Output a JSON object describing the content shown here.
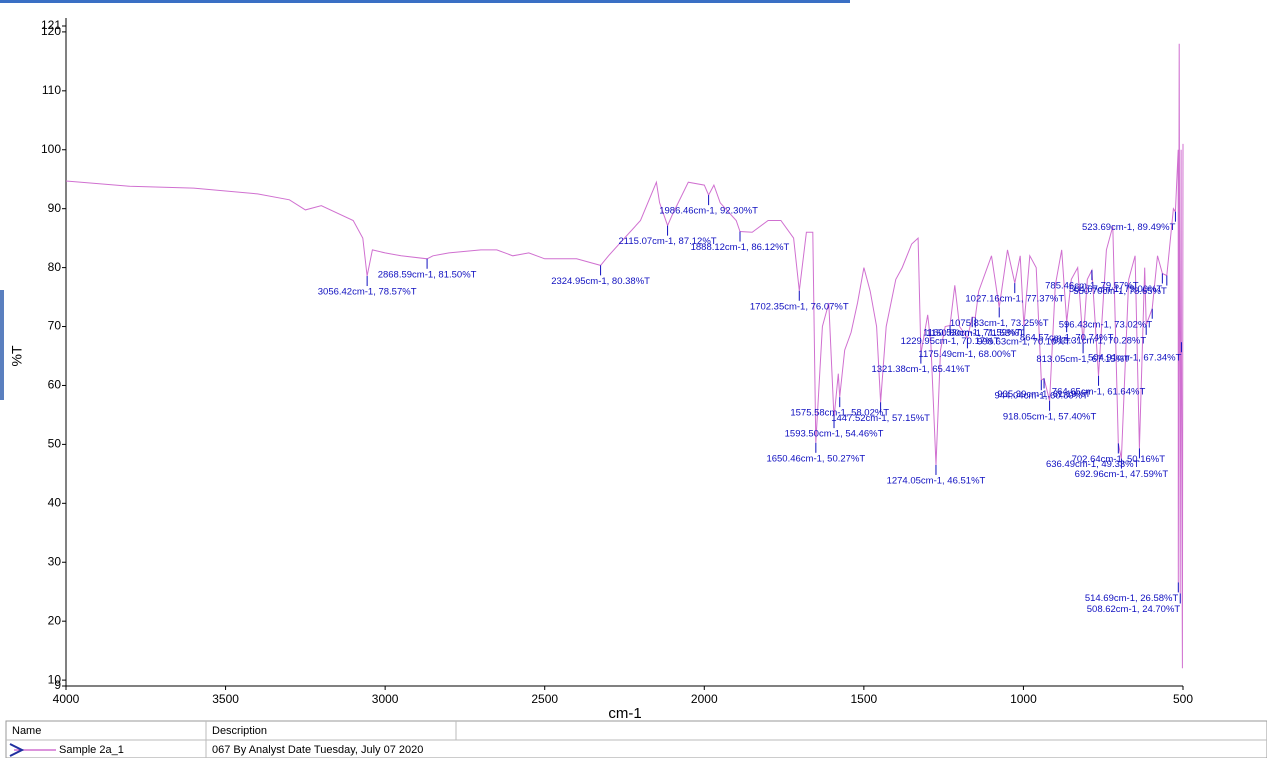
{
  "chart_data": {
    "type": "line",
    "xlabel": "cm-1",
    "ylabel": "%T",
    "xlim": [
      4000,
      500
    ],
    "ylim": [
      9,
      121
    ],
    "xticks": [
      4000,
      3500,
      3000,
      2500,
      2000,
      1500,
      1000,
      500
    ],
    "yticks": [
      9,
      10,
      20,
      30,
      40,
      50,
      60,
      70,
      80,
      90,
      100,
      110,
      120,
      121
    ],
    "x": [
      4000,
      3800,
      3600,
      3400,
      3300,
      3250,
      3200,
      3100,
      3070,
      3056.42,
      3040,
      3000,
      2950,
      2868.59,
      2850,
      2800,
      2700,
      2650,
      2600,
      2550,
      2500,
      2400,
      2324.95,
      2300,
      2250,
      2200,
      2150,
      2140,
      2115.07,
      2100,
      2050,
      2000,
      1986.46,
      1970,
      1950,
      1900,
      1888.12,
      1850,
      1800,
      1760,
      1720,
      1702.35,
      1680,
      1660,
      1650.46,
      1630,
      1610,
      1593.5,
      1580,
      1575.58,
      1560,
      1540,
      1520,
      1500,
      1480,
      1460,
      1447.52,
      1430,
      1400,
      1380,
      1350,
      1330,
      1321.38,
      1300,
      1290,
      1274.05,
      1260,
      1245,
      1229.95,
      1215,
      1200,
      1175.49,
      1160.53,
      1150.8,
      1140,
      1100,
      1075.83,
      1050,
      1027.16,
      1010,
      998.63,
      980,
      960,
      944.04,
      935.39,
      918.05,
      900,
      880,
      864.57,
      850,
      830,
      813.05,
      800,
      785.46,
      764.65,
      740,
      720,
      702.64,
      692.96,
      670,
      650,
      636.49,
      620,
      615.31,
      596.43,
      580,
      564.67,
      550.7,
      530,
      523.69,
      515,
      514.69,
      512,
      508.62,
      506,
      504.91,
      502,
      500
    ],
    "series": [
      {
        "name": "Sample 2a_1",
        "description": "067 By Analyst Date Tuesday, July 07 2020",
        "color": "#d070d0",
        "values": [
          94.7,
          93.8,
          93.5,
          92.5,
          91.5,
          89.8,
          90.5,
          88,
          85,
          78.57,
          83,
          82.5,
          82,
          81.5,
          82,
          82.5,
          83,
          83,
          82,
          82.5,
          81.5,
          81.5,
          80.38,
          82,
          85,
          88,
          94.5,
          91,
          87.12,
          89,
          94.5,
          94,
          92.3,
          94,
          91,
          88,
          86.12,
          86,
          88,
          88,
          85,
          76.07,
          86,
          86,
          50.27,
          70,
          74,
          54.46,
          62,
          58.02,
          66,
          69,
          74,
          80,
          76,
          70,
          57.15,
          70,
          78,
          80,
          84,
          85,
          65.41,
          72,
          67,
          46.51,
          66,
          70,
          70.17,
          77,
          70,
          68,
          71.59,
          71.53,
          76,
          82,
          73.25,
          83,
          77.37,
          82,
          70.1,
          82,
          80,
          60.89,
          61.19,
          57.4,
          77,
          83,
          70.74,
          78,
          80,
          67.15,
          78,
          79.57,
          61.64,
          83,
          87,
          50.16,
          47.59,
          78,
          82,
          49.33,
          80,
          70.28,
          73.02,
          82,
          79,
          78.65,
          90,
          89.49,
          100,
          26.58,
          118,
          24.7,
          100,
          67.34,
          12,
          101
        ]
      }
    ],
    "annotations": [
      {
        "x": 3056.42,
        "y": 78.57,
        "label": "3056.42cm-1, 78.57%T"
      },
      {
        "x": 2868.59,
        "y": 81.5,
        "label": "2868.59cm-1, 81.50%T"
      },
      {
        "x": 2324.95,
        "y": 80.38,
        "label": "2324.95cm-1, 80.38%T"
      },
      {
        "x": 2115.07,
        "y": 87.12,
        "label": "2115.07cm-1, 87.12%T"
      },
      {
        "x": 1986.46,
        "y": 92.3,
        "label": "1986.46cm-1, 92.30%T"
      },
      {
        "x": 1888.12,
        "y": 86.12,
        "label": "1888.12cm-1, 86.12%T"
      },
      {
        "x": 1702.35,
        "y": 76.07,
        "label": "1702.35cm-1, 76.07%T"
      },
      {
        "x": 1650.46,
        "y": 50.27,
        "label": "1650.46cm-1, 50.27%T"
      },
      {
        "x": 1593.5,
        "y": 54.46,
        "label": "1593.50cm-1, 54.46%T"
      },
      {
        "x": 1575.58,
        "y": 58.02,
        "label": "1575.58cm-1, 58.02%T"
      },
      {
        "x": 1447.52,
        "y": 57.15,
        "label": "1447.52cm-1, 57.15%T"
      },
      {
        "x": 1321.38,
        "y": 65.41,
        "label": "1321.38cm-1, 65.41%T"
      },
      {
        "x": 1274.05,
        "y": 46.51,
        "label": "1274.05cm-1, 46.51%T"
      },
      {
        "x": 1229.95,
        "y": 70.17,
        "label": "1229.95cm-1, 70.17%T"
      },
      {
        "x": 1175.49,
        "y": 68,
        "label": "1175.49cm-1, 68.00%T"
      },
      {
        "x": 1160.53,
        "y": 71.59,
        "label": "1160.53cm-1, 71.59%T"
      },
      {
        "x": 1150.8,
        "y": 71.53,
        "label": "1150.80cm-1, 71.53%T"
      },
      {
        "x": 1075.83,
        "y": 73.25,
        "label": "1075.83cm-1, 73.25%T"
      },
      {
        "x": 1027.16,
        "y": 77.37,
        "label": "1027.16cm-1, 77.37%T"
      },
      {
        "x": 998.63,
        "y": 70.1,
        "label": "998.63cm-1, 70.10%T"
      },
      {
        "x": 944.04,
        "y": 60.89,
        "label": "944.04cm-1, 60.89%T"
      },
      {
        "x": 935.39,
        "y": 61.19,
        "label": "935.39cm-1, 61.19%T"
      },
      {
        "x": 918.05,
        "y": 57.4,
        "label": "918.05cm-1, 57.40%T"
      },
      {
        "x": 864.57,
        "y": 70.74,
        "label": "864.57cm-1, 70.74%T"
      },
      {
        "x": 813.05,
        "y": 67.15,
        "label": "813.05cm-1, 67.15%T"
      },
      {
        "x": 785.46,
        "y": 79.57,
        "label": "785.46cm-1, 79.57%T"
      },
      {
        "x": 764.65,
        "y": 61.64,
        "label": "764.65cm-1, 61.64%T"
      },
      {
        "x": 702.64,
        "y": 50.16,
        "label": "702.64cm-1, 50.16%T"
      },
      {
        "x": 692.96,
        "y": 47.59,
        "label": "692.96cm-1, 47.59%T"
      },
      {
        "x": 636.49,
        "y": 49.33,
        "label": "636.49cm-1, 49.33%T"
      },
      {
        "x": 615.31,
        "y": 70.28,
        "label": "615.31cm-1, 70.28%T"
      },
      {
        "x": 596.43,
        "y": 73.02,
        "label": "596.43cm-1, 73.02%T"
      },
      {
        "x": 564.67,
        "y": 79,
        "label": "564.67cm-1, 79.00%T"
      },
      {
        "x": 550.7,
        "y": 78.65,
        "label": "550.70cm-1, 78.65%T"
      },
      {
        "x": 523.69,
        "y": 89.49,
        "label": "523.69cm-1, 89.49%T"
      },
      {
        "x": 514.69,
        "y": 26.58,
        "label": "514.69cm-1, 26.58%T"
      },
      {
        "x": 508.62,
        "y": 24.7,
        "label": "508.62cm-1, 24.70%T"
      },
      {
        "x": 504.91,
        "y": 67.34,
        "label": "504.91cm-1, 67.34%T"
      }
    ]
  },
  "legend_table_columns": [
    "Name",
    "Description"
  ]
}
